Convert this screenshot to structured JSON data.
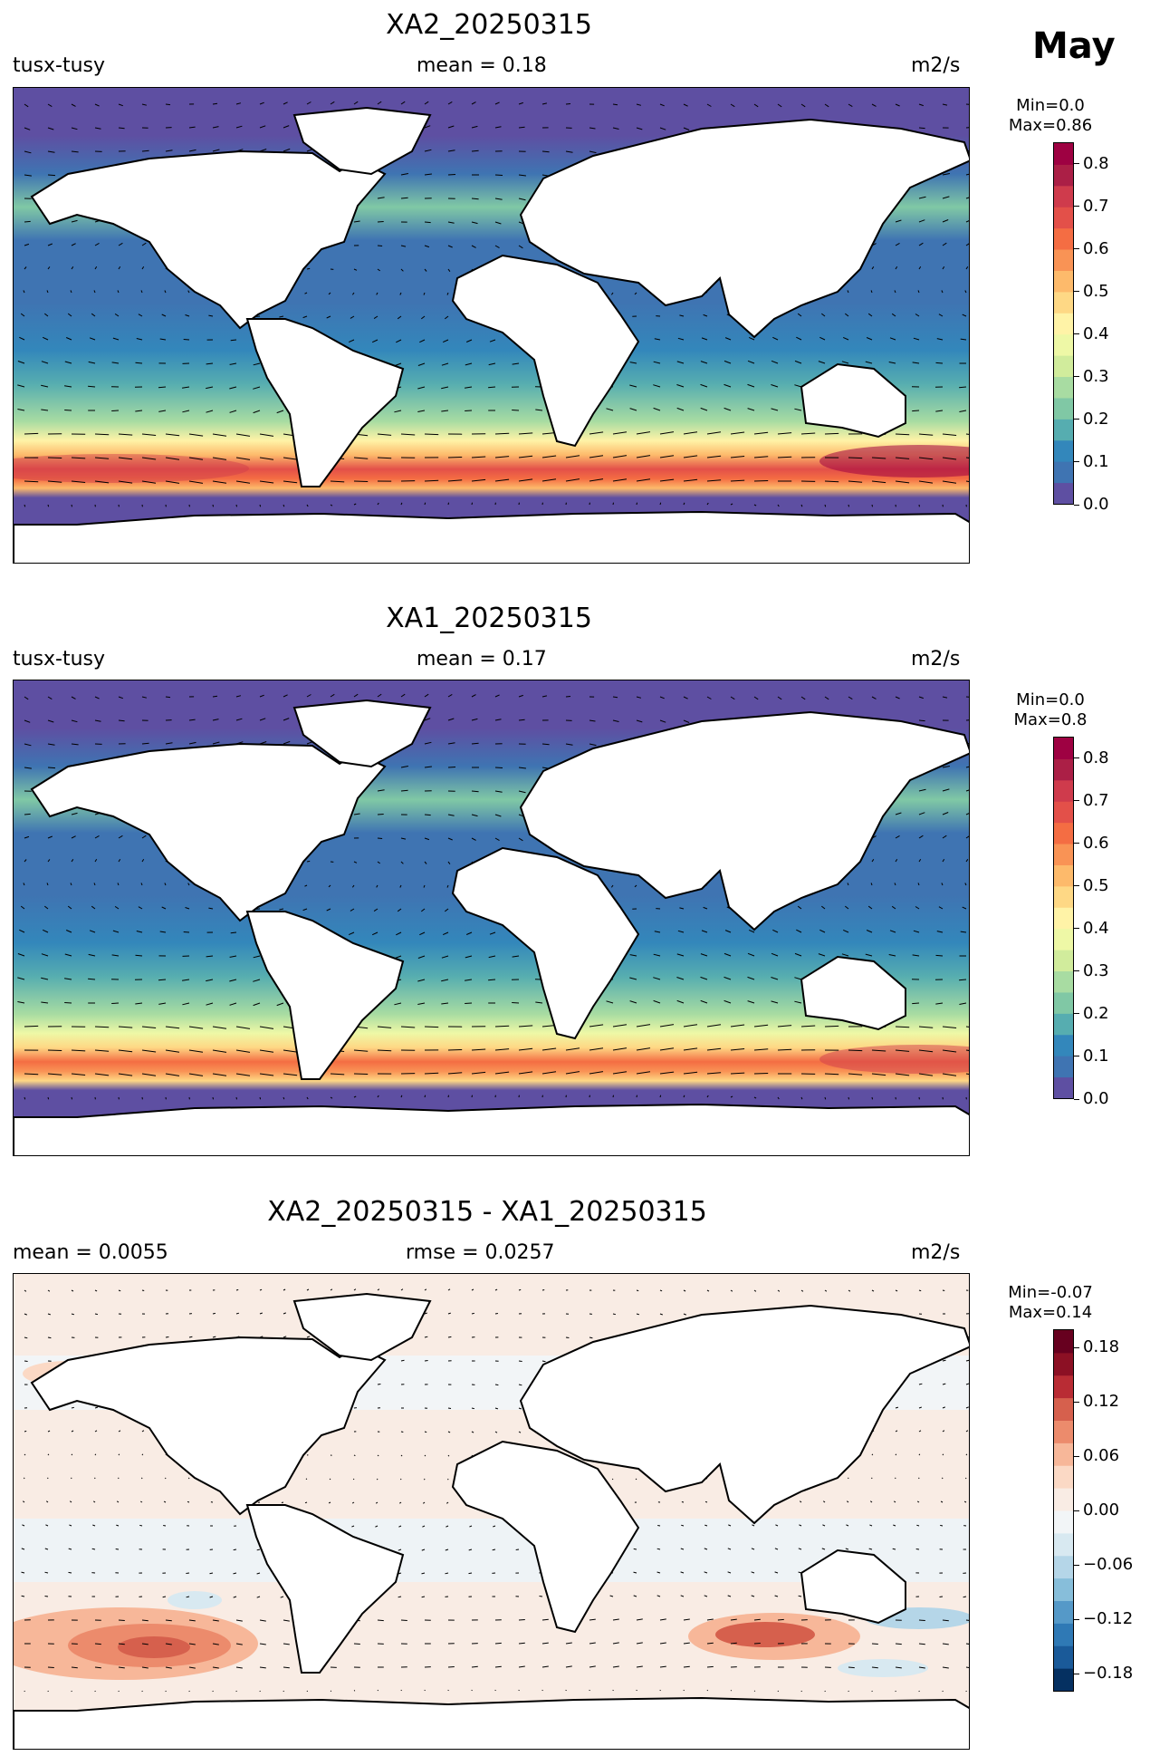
{
  "month_label": "May",
  "units": "m2/s",
  "panels": [
    {
      "title": "XA2_20250315",
      "left_label": "tusx-tusy",
      "center_label": "mean = 0.18",
      "right_label": "m2/s",
      "colorbar": {
        "header_line1": "Min=0.0",
        "header_line2": "Max=0.86",
        "ticks": [
          "0.8",
          "0.7",
          "0.6",
          "0.5",
          "0.4",
          "0.3",
          "0.2",
          "0.1",
          "0.0"
        ],
        "colors": [
          "#5e4fa2",
          "#3f74b2",
          "#3387bb",
          "#56adb0",
          "#80c8a5",
          "#a8dca2",
          "#d1ec9c",
          "#eef8a6",
          "#fff3a7",
          "#fed885",
          "#fdba6b",
          "#f99355",
          "#f46d43",
          "#e35049",
          "#cf3b4c",
          "#ab1f46",
          "#9e0142"
        ]
      }
    },
    {
      "title": "XA1_20250315",
      "left_label": "tusx-tusy",
      "center_label": "mean = 0.17",
      "right_label": "m2/s",
      "colorbar": {
        "header_line1": "Min=0.0",
        "header_line2": "Max=0.8",
        "ticks": [
          "0.8",
          "0.7",
          "0.6",
          "0.5",
          "0.4",
          "0.3",
          "0.2",
          "0.1",
          "0.0"
        ],
        "colors": [
          "#5e4fa2",
          "#3f74b2",
          "#3387bb",
          "#56adb0",
          "#80c8a5",
          "#a8dca2",
          "#d1ec9c",
          "#eef8a6",
          "#fff3a7",
          "#fed885",
          "#fdba6b",
          "#f99355",
          "#f46d43",
          "#e35049",
          "#cf3b4c",
          "#ab1f46",
          "#9e0142"
        ]
      }
    },
    {
      "title": "XA2_20250315 - XA1_20250315",
      "left_label": "mean = 0.0055",
      "center_label": "rmse = 0.0257",
      "right_label": "m2/s",
      "colorbar": {
        "header_line1": "Min=-0.07",
        "header_line2": "Max=0.14",
        "ticks": [
          "0.18",
          "0.12",
          "0.06",
          "0.00",
          "−0.06",
          "−0.12",
          "−0.18"
        ],
        "colors": [
          "#053061",
          "#1a5a99",
          "#2f79b5",
          "#5599c8",
          "#87beda",
          "#b5d6e8",
          "#d8e9f1",
          "#f2f5f7",
          "#f9ece4",
          "#fbd9c5",
          "#f7b799",
          "#ec8b6c",
          "#d6604d",
          "#b92c34",
          "#8c1024",
          "#67001f"
        ]
      }
    }
  ]
}
